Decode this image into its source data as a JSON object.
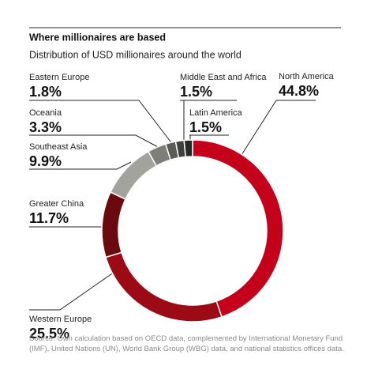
{
  "chart_data": {
    "type": "donut",
    "title": "Where millionaires are based",
    "subtitle": "Distribution of USD millionaires around the world",
    "source": "Source: Own calculation based on OECD data, complemented by International Monetary Fund (IMF), United Nations (UN), World Bank Group (WBG) data, and national statistics offices data.",
    "categories": [
      "North America",
      "Western Europe",
      "Greater China",
      "Southeast Asia",
      "Oceania",
      "Eastern Europe",
      "Middle East and Africa",
      "Latin America"
    ],
    "values": [
      44.8,
      25.5,
      11.7,
      9.9,
      3.3,
      1.8,
      1.5,
      1.5
    ],
    "value_labels": [
      "44.8%",
      "25.5%",
      "11.7%",
      "9.9%",
      "3.3%",
      "1.8%",
      "1.5%",
      "1.5%"
    ],
    "colors": [
      "#c4001a",
      "#9b0a15",
      "#6a0a0e",
      "#a3a39d",
      "#7e7e79",
      "#5c5c57",
      "#40403c",
      "#262a24"
    ]
  }
}
